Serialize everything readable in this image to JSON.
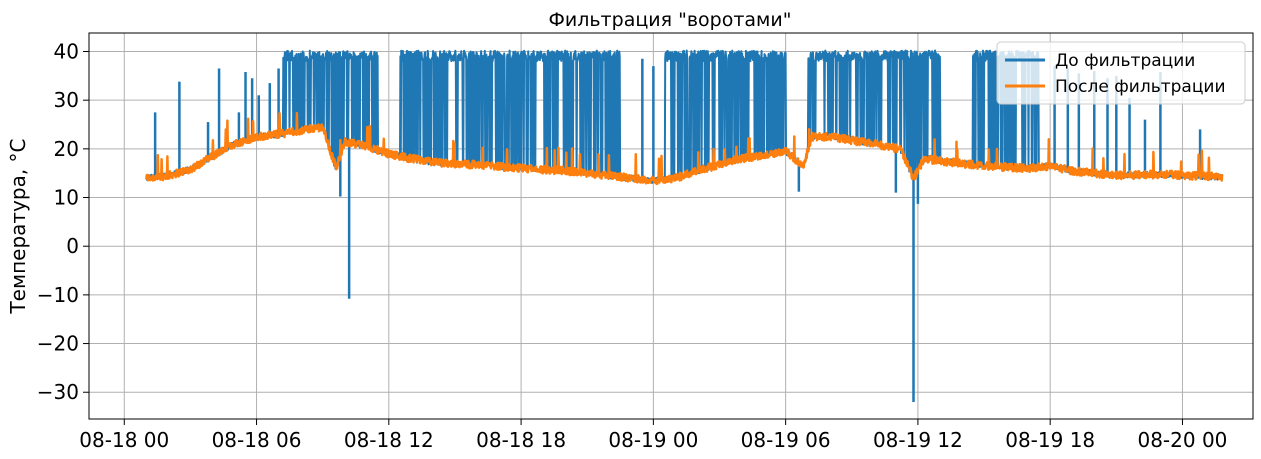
{
  "chart_data": {
    "type": "line",
    "title": "Фильтрация \"воротами\"",
    "xlabel": "",
    "ylabel": "Температура, °C",
    "xlim_hours": [
      -1.6,
      51.2
    ],
    "ylim": [
      -35.5,
      43.8
    ],
    "x_ticks": [
      {
        "hour": 0,
        "label": "08-18 00"
      },
      {
        "hour": 6,
        "label": "08-18 06"
      },
      {
        "hour": 12,
        "label": "08-18 12"
      },
      {
        "hour": 18,
        "label": "08-18 18"
      },
      {
        "hour": 24,
        "label": "08-19 00"
      },
      {
        "hour": 30,
        "label": "08-19 06"
      },
      {
        "hour": 36,
        "label": "08-19 12"
      },
      {
        "hour": 42,
        "label": "08-19 18"
      },
      {
        "hour": 48,
        "label": "08-20 00"
      }
    ],
    "y_ticks": [
      {
        "value": 40,
        "label": "40"
      },
      {
        "value": 30,
        "label": "30"
      },
      {
        "value": 20,
        "label": "20"
      },
      {
        "value": 10,
        "label": "10"
      },
      {
        "value": 0,
        "label": "0"
      },
      {
        "value": -10,
        "label": "−10"
      },
      {
        "value": -20,
        "label": "−20"
      },
      {
        "value": -30,
        "label": "−30"
      }
    ],
    "grid": true,
    "legend_position": "top-right",
    "series": [
      {
        "name": "До фильтрации",
        "color": "#1f77b4",
        "noise_band_hours": [
          7.2,
          11.5,
          12.5,
          22.5,
          24.5,
          30.0,
          31.0,
          37.0,
          38.5,
          41.5
        ],
        "spikes": [
          {
            "hour": 1.4,
            "value": 27.5
          },
          {
            "hour": 2.5,
            "value": 33.8
          },
          {
            "hour": 3.8,
            "value": 25.5
          },
          {
            "hour": 4.3,
            "value": 36.5
          },
          {
            "hour": 5.2,
            "value": 27.5
          },
          {
            "hour": 5.5,
            "value": 35.8
          },
          {
            "hour": 5.8,
            "value": 34.5
          },
          {
            "hour": 6.1,
            "value": 31.0
          },
          {
            "hour": 6.6,
            "value": 33.5
          },
          {
            "hour": 7.0,
            "value": 36.5
          },
          {
            "hour": 9.8,
            "value": 10.2
          },
          {
            "hour": 9.9,
            "value": 39.0
          },
          {
            "hour": 10.2,
            "value": -10.8
          },
          {
            "hour": 23.5,
            "value": 38.5
          },
          {
            "hour": 24.0,
            "value": 37.0
          },
          {
            "hour": 30.6,
            "value": 11.2
          },
          {
            "hour": 35.0,
            "value": 11.0
          },
          {
            "hour": 35.8,
            "value": -32.0
          },
          {
            "hour": 36.0,
            "value": 8.7
          },
          {
            "hour": 42.2,
            "value": 37.0
          },
          {
            "hour": 42.8,
            "value": 36.5
          },
          {
            "hour": 43.3,
            "value": 35.5
          },
          {
            "hour": 44.0,
            "value": 36.0
          },
          {
            "hour": 44.6,
            "value": 34.5
          },
          {
            "hour": 45.0,
            "value": 35.0
          },
          {
            "hour": 45.6,
            "value": 30.5
          },
          {
            "hour": 46.3,
            "value": 26.0
          },
          {
            "hour": 47.0,
            "value": 35.8
          },
          {
            "hour": 48.8,
            "value": 24.0
          }
        ]
      },
      {
        "name": "После фильтрации",
        "color": "#ff7f0e",
        "start_hour": 1.0,
        "end_hour": 49.8,
        "baseline": [
          {
            "hour": 1.0,
            "value": 14.0
          },
          {
            "hour": 2.0,
            "value": 14.5
          },
          {
            "hour": 3.0,
            "value": 15.8
          },
          {
            "hour": 4.0,
            "value": 18.5
          },
          {
            "hour": 5.0,
            "value": 21.0
          },
          {
            "hour": 6.0,
            "value": 22.5
          },
          {
            "hour": 7.0,
            "value": 23.0
          },
          {
            "hour": 8.0,
            "value": 23.8
          },
          {
            "hour": 9.0,
            "value": 24.5
          },
          {
            "hour": 9.6,
            "value": 16.0
          },
          {
            "hour": 10.0,
            "value": 21.5
          },
          {
            "hour": 11.0,
            "value": 20.5
          },
          {
            "hour": 12.0,
            "value": 19.0
          },
          {
            "hour": 13.0,
            "value": 18.0
          },
          {
            "hour": 14.0,
            "value": 17.2
          },
          {
            "hour": 16.0,
            "value": 16.7
          },
          {
            "hour": 18.0,
            "value": 16.0
          },
          {
            "hour": 20.0,
            "value": 15.5
          },
          {
            "hour": 22.0,
            "value": 14.5
          },
          {
            "hour": 24.0,
            "value": 13.5
          },
          {
            "hour": 25.0,
            "value": 14.0
          },
          {
            "hour": 26.0,
            "value": 15.5
          },
          {
            "hour": 28.0,
            "value": 18.0
          },
          {
            "hour": 30.0,
            "value": 19.5
          },
          {
            "hour": 30.8,
            "value": 16.5
          },
          {
            "hour": 31.2,
            "value": 22.5
          },
          {
            "hour": 32.0,
            "value": 22.5
          },
          {
            "hour": 34.0,
            "value": 21.0
          },
          {
            "hour": 35.2,
            "value": 20.0
          },
          {
            "hour": 35.8,
            "value": 14.0
          },
          {
            "hour": 36.3,
            "value": 18.0
          },
          {
            "hour": 37.0,
            "value": 17.5
          },
          {
            "hour": 39.0,
            "value": 16.5
          },
          {
            "hour": 41.0,
            "value": 16.0
          },
          {
            "hour": 42.0,
            "value": 16.5
          },
          {
            "hour": 43.0,
            "value": 15.5
          },
          {
            "hour": 45.0,
            "value": 14.5
          },
          {
            "hour": 47.0,
            "value": 14.8
          },
          {
            "hour": 49.8,
            "value": 14.2
          }
        ]
      }
    ]
  }
}
